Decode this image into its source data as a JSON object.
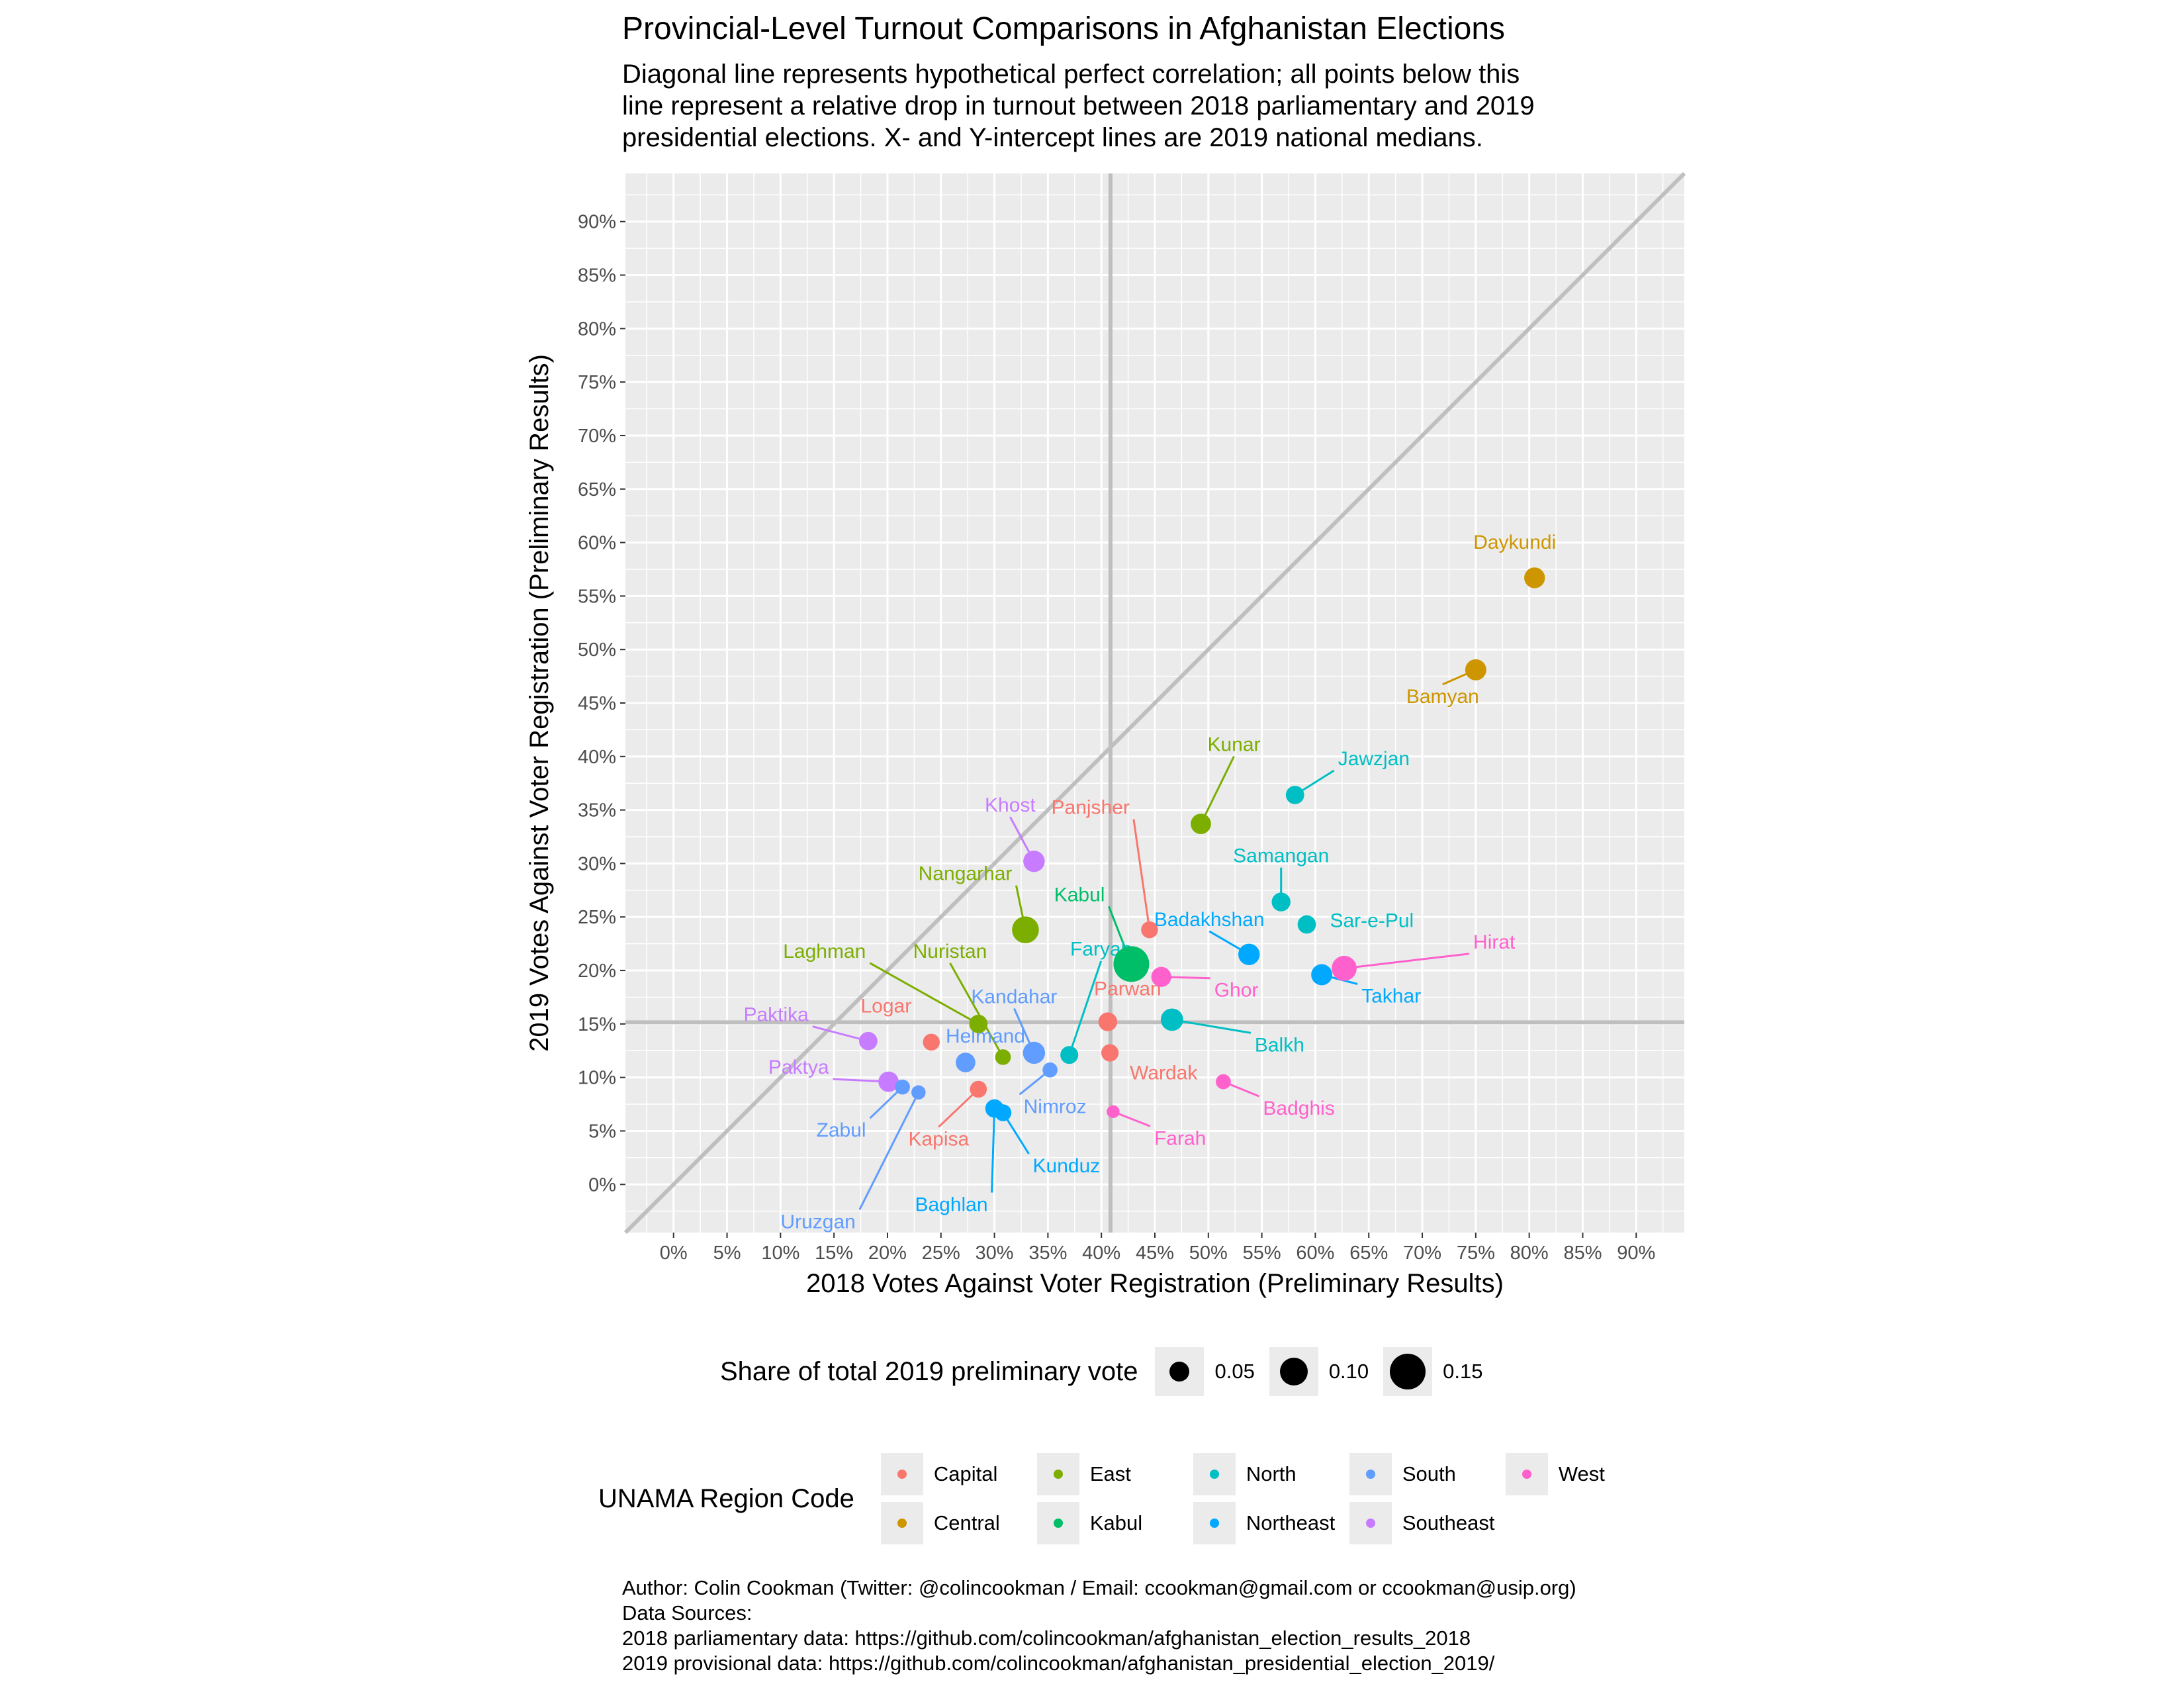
{
  "header": {
    "title": "Provincial-Level Turnout Comparisons in Afghanistan Elections",
    "subtitle_lines": [
      "Diagonal line represents hypothetical perfect correlation; all points below this",
      "line represent a relative drop in turnout between 2018 parliamentary and 2019",
      "presidential elections. X- and Y-intercept lines are 2019 national medians."
    ]
  },
  "chart_data": {
    "type": "scatter",
    "title": "Provincial-Level Turnout Comparisons in Afghanistan Elections",
    "xlabel": "2018 Votes Against Voter Registration (Preliminary Results)",
    "ylabel": "2019 Votes Against Voter Registration (Preliminary Results)",
    "xlim": [
      -0.045,
      0.945
    ],
    "ylim": [
      -0.045,
      0.945
    ],
    "x_ticks": [
      0,
      0.05,
      0.1,
      0.15,
      0.2,
      0.25,
      0.3,
      0.35,
      0.4,
      0.45,
      0.5,
      0.55,
      0.6,
      0.65,
      0.7,
      0.75,
      0.8,
      0.85,
      0.9
    ],
    "x_tick_labels": [
      "0%",
      "5%",
      "10%",
      "15%",
      "20%",
      "25%",
      "30%",
      "35%",
      "40%",
      "45%",
      "50%",
      "55%",
      "60%",
      "65%",
      "70%",
      "75%",
      "80%",
      "85%",
      "90%"
    ],
    "y_ticks": [
      0,
      0.05,
      0.1,
      0.15,
      0.2,
      0.25,
      0.3,
      0.35,
      0.4,
      0.45,
      0.5,
      0.55,
      0.6,
      0.65,
      0.7,
      0.75,
      0.8,
      0.85,
      0.9
    ],
    "y_tick_labels": [
      "0%",
      "5%",
      "10%",
      "15%",
      "20%",
      "25%",
      "30%",
      "35%",
      "40%",
      "45%",
      "50%",
      "55%",
      "60%",
      "65%",
      "70%",
      "75%",
      "80%",
      "85%",
      "90%"
    ],
    "grid": true,
    "reference_lines": {
      "diagonal": true,
      "x_median": 0.4085,
      "y_median": 0.1515
    },
    "size_legend": {
      "title": "Share of total 2019 preliminary vote",
      "values": [
        0.05,
        0.1,
        0.15
      ],
      "labels": [
        "0.05",
        "0.10",
        "0.15"
      ]
    },
    "region_legend": {
      "title": "UNAMA Region Code",
      "items": [
        {
          "name": "Capital",
          "color": "#F8766D"
        },
        {
          "name": "Central",
          "color": "#CD9600"
        },
        {
          "name": "East",
          "color": "#7CAE00"
        },
        {
          "name": "Kabul",
          "color": "#00BE67"
        },
        {
          "name": "North",
          "color": "#00BFC4"
        },
        {
          "name": "Northeast",
          "color": "#00A9FF"
        },
        {
          "name": "South",
          "color": "#619CFF"
        },
        {
          "name": "Southeast",
          "color": "#C77CFF"
        },
        {
          "name": "West",
          "color": "#FF61CC"
        }
      ]
    },
    "points": [
      {
        "name": "Daykundi",
        "region": "Central",
        "x": 0.805,
        "y": 0.567,
        "share": 0.032
      },
      {
        "name": "Bamyan",
        "region": "Central",
        "x": 0.75,
        "y": 0.481,
        "share": 0.034
      },
      {
        "name": "Kunar",
        "region": "East",
        "x": 0.493,
        "y": 0.337,
        "share": 0.03
      },
      {
        "name": "Jawzjan",
        "region": "North",
        "x": 0.581,
        "y": 0.364,
        "share": 0.02
      },
      {
        "name": "Panjsher",
        "region": "Capital",
        "x": 0.445,
        "y": 0.238,
        "share": 0.014
      },
      {
        "name": "Khost",
        "region": "Southeast",
        "x": 0.337,
        "y": 0.302,
        "share": 0.036
      },
      {
        "name": "Samangan",
        "region": "North",
        "x": 0.568,
        "y": 0.264,
        "share": 0.022
      },
      {
        "name": "Nangarhar",
        "region": "East",
        "x": 0.329,
        "y": 0.238,
        "share": 0.075
      },
      {
        "name": "Kabul",
        "region": "Kabul",
        "x": 0.428,
        "y": 0.206,
        "share": 0.17
      },
      {
        "name": "Faryab",
        "region": "North",
        "x": 0.37,
        "y": 0.121,
        "share": 0.018
      },
      {
        "name": "Badakhshan",
        "region": "Northeast",
        "x": 0.538,
        "y": 0.215,
        "share": 0.036
      },
      {
        "name": "Sar-e-Pul",
        "region": "North",
        "x": 0.592,
        "y": 0.243,
        "share": 0.02
      },
      {
        "name": "Hirat",
        "region": "West",
        "x": 0.627,
        "y": 0.202,
        "share": 0.06
      },
      {
        "name": "Takhar",
        "region": "Northeast",
        "x": 0.606,
        "y": 0.196,
        "share": 0.034
      },
      {
        "name": "Ghor",
        "region": "West",
        "x": 0.456,
        "y": 0.194,
        "share": 0.028
      },
      {
        "name": "Laghman",
        "region": "East",
        "x": 0.285,
        "y": 0.15,
        "share": 0.02
      },
      {
        "name": "Nuristan",
        "region": "East",
        "x": 0.308,
        "y": 0.119,
        "share": 0.01
      },
      {
        "name": "Kandahar",
        "region": "South",
        "x": 0.337,
        "y": 0.123,
        "share": 0.04
      },
      {
        "name": "Parwan",
        "region": "Capital",
        "x": 0.406,
        "y": 0.152,
        "share": 0.022
      },
      {
        "name": "Balkh",
        "region": "North",
        "x": 0.466,
        "y": 0.154,
        "share": 0.042
      },
      {
        "name": "Paktika",
        "region": "Southeast",
        "x": 0.182,
        "y": 0.134,
        "share": 0.02
      },
      {
        "name": "Logar",
        "region": "Capital",
        "x": 0.241,
        "y": 0.133,
        "share": 0.014
      },
      {
        "name": "Helmand",
        "region": "South",
        "x": 0.273,
        "y": 0.114,
        "share": 0.026
      },
      {
        "name": "Nimroz",
        "region": "South",
        "x": 0.352,
        "y": 0.107,
        "share": 0.008
      },
      {
        "name": "Wardak",
        "region": "Capital",
        "x": 0.408,
        "y": 0.123,
        "share": 0.016
      },
      {
        "name": "Badghis",
        "region": "West",
        "x": 0.514,
        "y": 0.096,
        "share": 0.008
      },
      {
        "name": "Paktya",
        "region": "Southeast",
        "x": 0.201,
        "y": 0.096,
        "share": 0.03
      },
      {
        "name": "Zabul",
        "region": "South",
        "x": 0.214,
        "y": 0.091,
        "share": 0.008
      },
      {
        "name": "Uruzgan",
        "region": "South",
        "x": 0.229,
        "y": 0.086,
        "share": 0.006
      },
      {
        "name": "Kapisa",
        "region": "Capital",
        "x": 0.285,
        "y": 0.089,
        "share": 0.014
      },
      {
        "name": "Baghlan",
        "region": "Northeast",
        "x": 0.3,
        "y": 0.071,
        "share": 0.02
      },
      {
        "name": "Kunduz",
        "region": "Northeast",
        "x": 0.308,
        "y": 0.067,
        "share": 0.014
      },
      {
        "name": "Farah",
        "region": "West",
        "x": 0.411,
        "y": 0.068,
        "share": 0.003
      }
    ]
  },
  "caption": {
    "lines": [
      "Author: Colin Cookman (Twitter: @colincookman / Email: ccookman@gmail.com or ccookman@usip.org)",
      "Data Sources:",
      "2018 parliamentary data: https://github.com/colincookman/afghanistan_election_results_2018",
      "2019 provisional data: https://github.com/colincookman/afghanistan_presidential_election_2019/"
    ]
  }
}
